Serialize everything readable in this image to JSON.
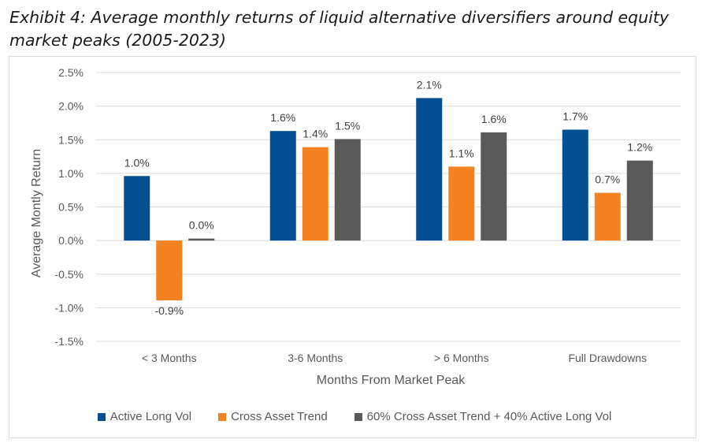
{
  "title": "Exhibit 4: Average monthly returns of liquid alternative diversifiers around equity market peaks (2005-2023)",
  "chart_data": {
    "type": "bar",
    "categories": [
      "< 3 Months",
      "3-6 Months",
      "> 6 Months",
      "Full Drawdowns"
    ],
    "series": [
      {
        "name": "Active Long Vol",
        "color": "#044f93",
        "values": [
          0.96,
          1.63,
          2.12,
          1.65
        ],
        "labels": [
          "1.0%",
          "1.6%",
          "2.1%",
          "1.7%"
        ]
      },
      {
        "name": "Cross Asset Trend",
        "color": "#f58220",
        "values": [
          -0.89,
          1.39,
          1.1,
          0.71
        ],
        "labels": [
          "-0.9%",
          "1.4%",
          "1.1%",
          "0.7%"
        ]
      },
      {
        "name": "60% Cross Asset Trend + 40% Active Long Vol",
        "color": "#5a5a5a",
        "values": [
          0.03,
          1.51,
          1.61,
          1.19
        ],
        "labels": [
          "0.0%",
          "1.5%",
          "1.6%",
          "1.2%"
        ]
      }
    ],
    "xlabel": "Months From Market Peak",
    "ylabel": "Average Montly Return",
    "ylim": [
      -1.5,
      2.5
    ],
    "yticks": [
      "-1.5%",
      "-1.0%",
      "-0.5%",
      "0.0%",
      "0.5%",
      "1.0%",
      "1.5%",
      "2.0%",
      "2.5%"
    ],
    "ytick_values": [
      -1.5,
      -1.0,
      -0.5,
      0.0,
      0.5,
      1.0,
      1.5,
      2.0,
      2.5
    ],
    "grid": true,
    "legend": "bottom"
  }
}
